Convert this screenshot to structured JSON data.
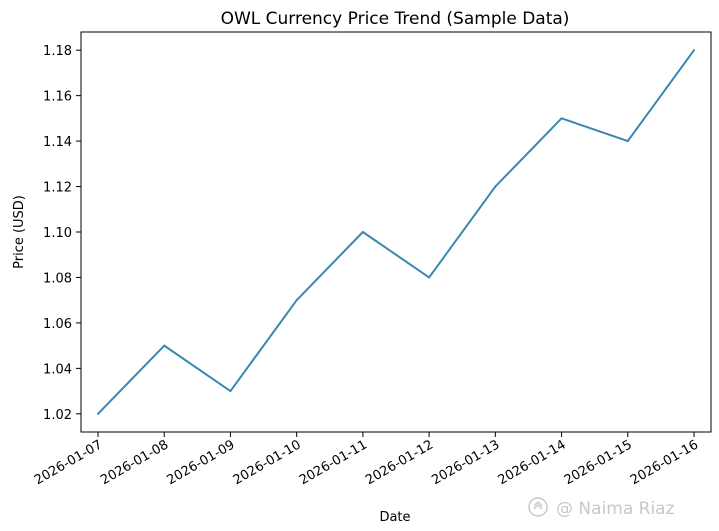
{
  "chart_data": {
    "type": "line",
    "title": "OWL Currency Price Trend (Sample Data)",
    "xlabel": "Date",
    "ylabel": "Price (USD)",
    "x": [
      "2026-01-07",
      "2026-01-08",
      "2026-01-09",
      "2026-01-10",
      "2026-01-11",
      "2026-01-12",
      "2026-01-13",
      "2026-01-14",
      "2026-01-15",
      "2026-01-16"
    ],
    "series": [
      {
        "values": [
          1.02,
          1.05,
          1.03,
          1.07,
          1.1,
          1.08,
          1.12,
          1.15,
          1.14,
          1.18
        ],
        "color": "#3a87b3"
      }
    ],
    "yticks": [
      "1.02",
      "1.04",
      "1.06",
      "1.08",
      "1.10",
      "1.12",
      "1.14",
      "1.16",
      "1.18"
    ],
    "ylim": [
      1.012,
      1.188
    ],
    "grid": false,
    "legend": "none"
  },
  "watermark": {
    "text": "@ Naima Riaz",
    "icon": "watermark-logo-icon"
  }
}
